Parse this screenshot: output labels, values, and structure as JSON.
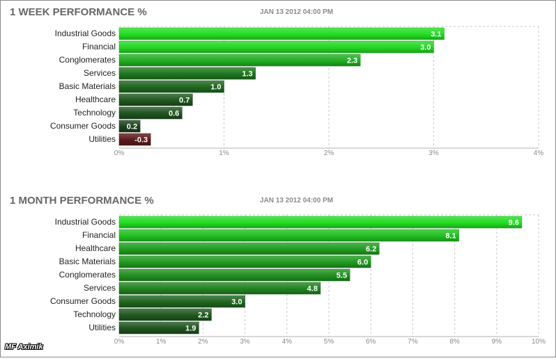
{
  "chart_data": [
    {
      "type": "bar",
      "orientation": "horizontal",
      "title": "1 WEEK PERFORMANCE %",
      "timestamp": "JAN 13 2012 04:00 PM",
      "categories": [
        "Industrial Goods",
        "Financial",
        "Conglomerates",
        "Services",
        "Basic Materials",
        "Healthcare",
        "Technology",
        "Consumer Goods",
        "Utilities"
      ],
      "values": [
        3.1,
        3.0,
        2.3,
        1.3,
        1.0,
        0.7,
        0.6,
        0.2,
        -0.3
      ],
      "value_labels": [
        "3.1",
        "3.0",
        "2.3",
        "1.3",
        "1.0",
        "0.7",
        "0.6",
        "0.2",
        "-0.3"
      ],
      "xlim": [
        0,
        4
      ],
      "xticks": [
        0,
        1,
        2,
        3,
        4
      ],
      "xtick_labels": [
        "0%",
        "1%",
        "2%",
        "3%",
        "4%"
      ],
      "grid": "vertical dashed"
    },
    {
      "type": "bar",
      "orientation": "horizontal",
      "title": "1 MONTH PERFORMANCE %",
      "timestamp": "JAN 13 2012 04:00 PM",
      "categories": [
        "Industrial Goods",
        "Financial",
        "Healthcare",
        "Basic Materials",
        "Conglomerates",
        "Services",
        "Consumer Goods",
        "Technology",
        "Utilities"
      ],
      "values": [
        9.6,
        8.1,
        6.2,
        6.0,
        5.5,
        4.8,
        3.0,
        2.2,
        1.9
      ],
      "value_labels": [
        "9.6",
        "8.1",
        "6.2",
        "6.0",
        "5.5",
        "4.8",
        "3.0",
        "2.2",
        "1.9"
      ],
      "xlim": [
        0,
        10
      ],
      "xticks": [
        0,
        1,
        2,
        3,
        4,
        5,
        6,
        7,
        8,
        9,
        10
      ],
      "xtick_labels": [
        "0%",
        "1%",
        "2%",
        "3%",
        "4%",
        "5%",
        "6%",
        "7%",
        "8%",
        "9%",
        "10%"
      ],
      "grid": "vertical dashed"
    }
  ],
  "watermark": "MF Aximik",
  "colors": {
    "bar_strong_positive": "#22dd22",
    "bar_weak_positive": "#1e3a1e",
    "bar_negative": "#5a1a1a",
    "grid": "#c8c8c8",
    "title": "#666666",
    "timestamp": "#8a8a8a"
  }
}
